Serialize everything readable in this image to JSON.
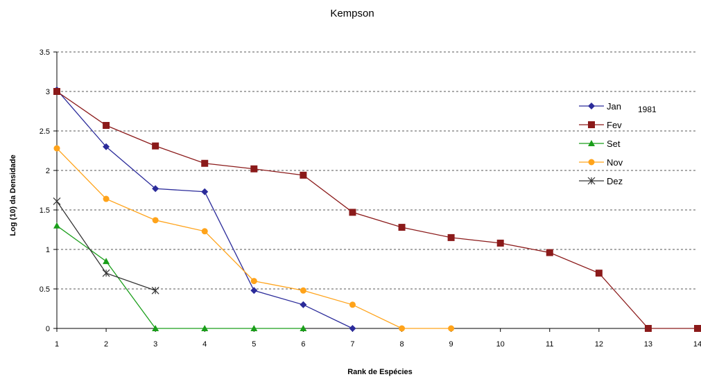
{
  "chart_data": {
    "type": "line",
    "title": "Kempson",
    "xlabel": "Rank de Espécies",
    "ylabel": "Log (10) da Densidade",
    "annotation": "1981",
    "xlim": [
      1,
      14
    ],
    "ylim": [
      0,
      3.5
    ],
    "x_ticks": [
      "1",
      "2",
      "3",
      "4",
      "5",
      "6",
      "7",
      "8",
      "9",
      "10",
      "11",
      "12",
      "13",
      "14"
    ],
    "y_ticks": [
      "0",
      "0.5",
      "1",
      "1.5",
      "2",
      "2.5",
      "3",
      "3.5"
    ],
    "grid": "horizontal-dashed",
    "legend_position": "right",
    "series": [
      {
        "name": "Jan",
        "color": "#2b2b9a",
        "marker": "diamond",
        "x": [
          1,
          2,
          3,
          4,
          5,
          6,
          7
        ],
        "y": [
          3.02,
          2.3,
          1.77,
          1.73,
          0.48,
          0.3,
          0.0
        ]
      },
      {
        "name": "Fev",
        "color": "#8b1a1a",
        "marker": "square",
        "x": [
          1,
          2,
          3,
          4,
          5,
          6,
          7,
          8,
          9,
          10,
          11,
          12,
          13,
          14
        ],
        "y": [
          3.0,
          2.57,
          2.31,
          2.09,
          2.02,
          1.94,
          1.47,
          1.28,
          1.15,
          1.08,
          0.96,
          0.7,
          0.0,
          0.0
        ]
      },
      {
        "name": "Set",
        "color": "#1a9e1a",
        "marker": "triangle",
        "x": [
          1,
          2,
          3,
          4,
          5,
          6
        ],
        "y": [
          1.3,
          0.85,
          0.0,
          0.0,
          0.0,
          0.0
        ]
      },
      {
        "name": "Nov",
        "color": "#ffa31a",
        "marker": "circle",
        "x": [
          1,
          2,
          3,
          4,
          5,
          6,
          7,
          8,
          9
        ],
        "y": [
          2.28,
          1.64,
          1.37,
          1.23,
          0.6,
          0.48,
          0.3,
          0.0,
          0.0
        ]
      },
      {
        "name": "Dez",
        "color": "#333333",
        "marker": "star",
        "x": [
          1,
          2,
          3
        ],
        "y": [
          1.61,
          0.7,
          0.48
        ]
      }
    ]
  }
}
